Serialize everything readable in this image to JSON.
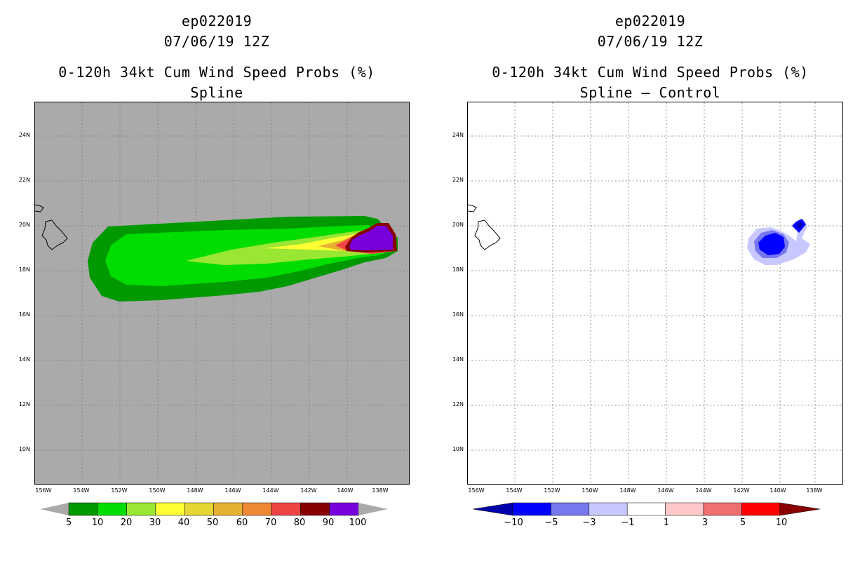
{
  "left": {
    "title": "ep022019",
    "datetime": "07/06/19 12Z",
    "product": "0-120h 34kt Cum Wind Speed Probs (%)",
    "subtitle": "Spline",
    "colorbar": {
      "labels": [
        "5",
        "10",
        "20",
        "30",
        "40",
        "50",
        "60",
        "70",
        "80",
        "90",
        "100"
      ],
      "colors": [
        "#009900",
        "#00dd00",
        "#99e633",
        "#ffff33",
        "#e6d633",
        "#e6b033",
        "#ee8833",
        "#f04444",
        "#880000",
        "#7700dd"
      ]
    }
  },
  "right": {
    "title": "ep022019",
    "datetime": "07/06/19 12Z",
    "product": "0-120h 34kt Cum Wind Speed Probs (%)",
    "subtitle": "Spline – Control",
    "colorbar": {
      "labels": [
        "−10",
        "−5",
        "−3",
        "−1",
        "1",
        "3",
        "5",
        "10"
      ],
      "colors": [
        "#0000aa",
        "#0000ff",
        "#7777ee",
        "#c8c8ff",
        "#ffffff",
        "#ffc8c8",
        "#f07070",
        "#ff0000",
        "#880000"
      ]
    }
  },
  "axes": {
    "lat_labels": [
      "24N",
      "22N",
      "20N",
      "18N",
      "16N",
      "14N",
      "12N",
      "10N"
    ],
    "lon_labels": [
      "156W",
      "154W",
      "152W",
      "150W",
      "148W",
      "146W",
      "144W",
      "142W",
      "140W",
      "138W"
    ]
  }
}
